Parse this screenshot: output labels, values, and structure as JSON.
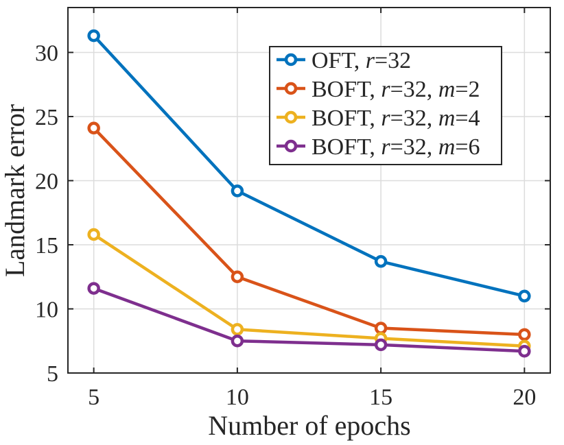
{
  "chart_data": {
    "type": "line",
    "title": "",
    "xlabel": "Number of epochs",
    "ylabel": "Landmark error",
    "x": [
      5,
      10,
      15,
      20
    ],
    "xlim": [
      4.1,
      20.9
    ],
    "ylim": [
      5,
      33.5
    ],
    "xticks": [
      5,
      10,
      15,
      20
    ],
    "yticks": [
      5,
      10,
      15,
      20,
      25,
      30
    ],
    "grid": true,
    "legend_position": "top-right",
    "series": [
      {
        "name": "OFT, r=32",
        "label_parts": [
          [
            "OFT, ",
            false
          ],
          [
            "r",
            true
          ],
          [
            "=32",
            false
          ]
        ],
        "color": "#0072BD",
        "values": [
          31.3,
          19.2,
          13.7,
          11.0
        ]
      },
      {
        "name": "BOFT, r=32, m=2",
        "label_parts": [
          [
            "BOFT, ",
            false
          ],
          [
            "r",
            true
          ],
          [
            "=32, ",
            false
          ],
          [
            "m",
            true
          ],
          [
            "=2",
            false
          ]
        ],
        "color": "#D95319",
        "values": [
          24.1,
          12.5,
          8.5,
          8.0
        ]
      },
      {
        "name": "BOFT, r=32, m=4",
        "label_parts": [
          [
            "BOFT, ",
            false
          ],
          [
            "r",
            true
          ],
          [
            "=32, ",
            false
          ],
          [
            "m",
            true
          ],
          [
            "=4",
            false
          ]
        ],
        "color": "#EDB120",
        "values": [
          15.8,
          8.4,
          7.7,
          7.1
        ]
      },
      {
        "name": "BOFT, r=32, m=6",
        "label_parts": [
          [
            "BOFT, ",
            false
          ],
          [
            "r",
            true
          ],
          [
            "=32, ",
            false
          ],
          [
            "m",
            true
          ],
          [
            "=6",
            false
          ]
        ],
        "color": "#7E2F8E",
        "values": [
          11.6,
          7.5,
          7.2,
          6.7
        ]
      }
    ]
  }
}
